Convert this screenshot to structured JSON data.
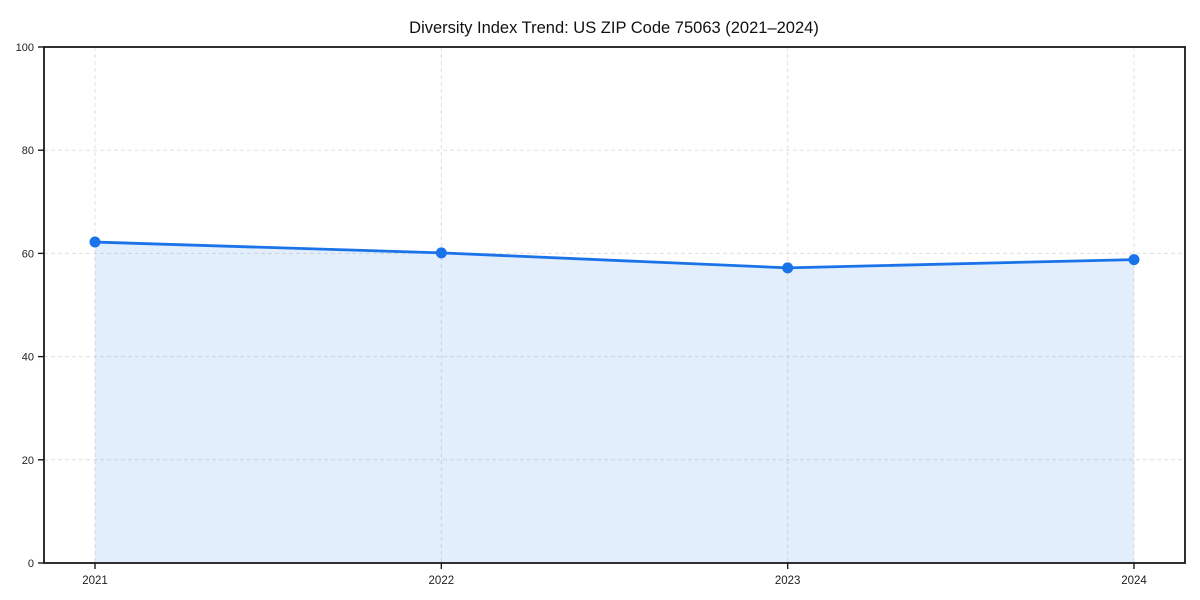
{
  "figure": {
    "background_color": "#ffffff"
  },
  "chart_data": {
    "type": "area",
    "title": "Diversity Index Trend: US ZIP Code 75063 (2021–2024)",
    "x": [
      "2021",
      "2022",
      "2023",
      "2024"
    ],
    "values": [
      62.2,
      60.1,
      57.2,
      58.8
    ],
    "xlabel": "",
    "ylabel": "",
    "ylim": [
      0,
      100
    ],
    "yticks": [
      0,
      20,
      40,
      60,
      80,
      100
    ],
    "grid": true,
    "grid_style": "dashed",
    "legend": "none",
    "line_color": "#1a73e8",
    "marker_color": "#1a73e8",
    "fill_color": "rgba(26,115,232,0.12)",
    "grid_color": "#e0e0e0",
    "frame_color": "#1a1a1a"
  }
}
